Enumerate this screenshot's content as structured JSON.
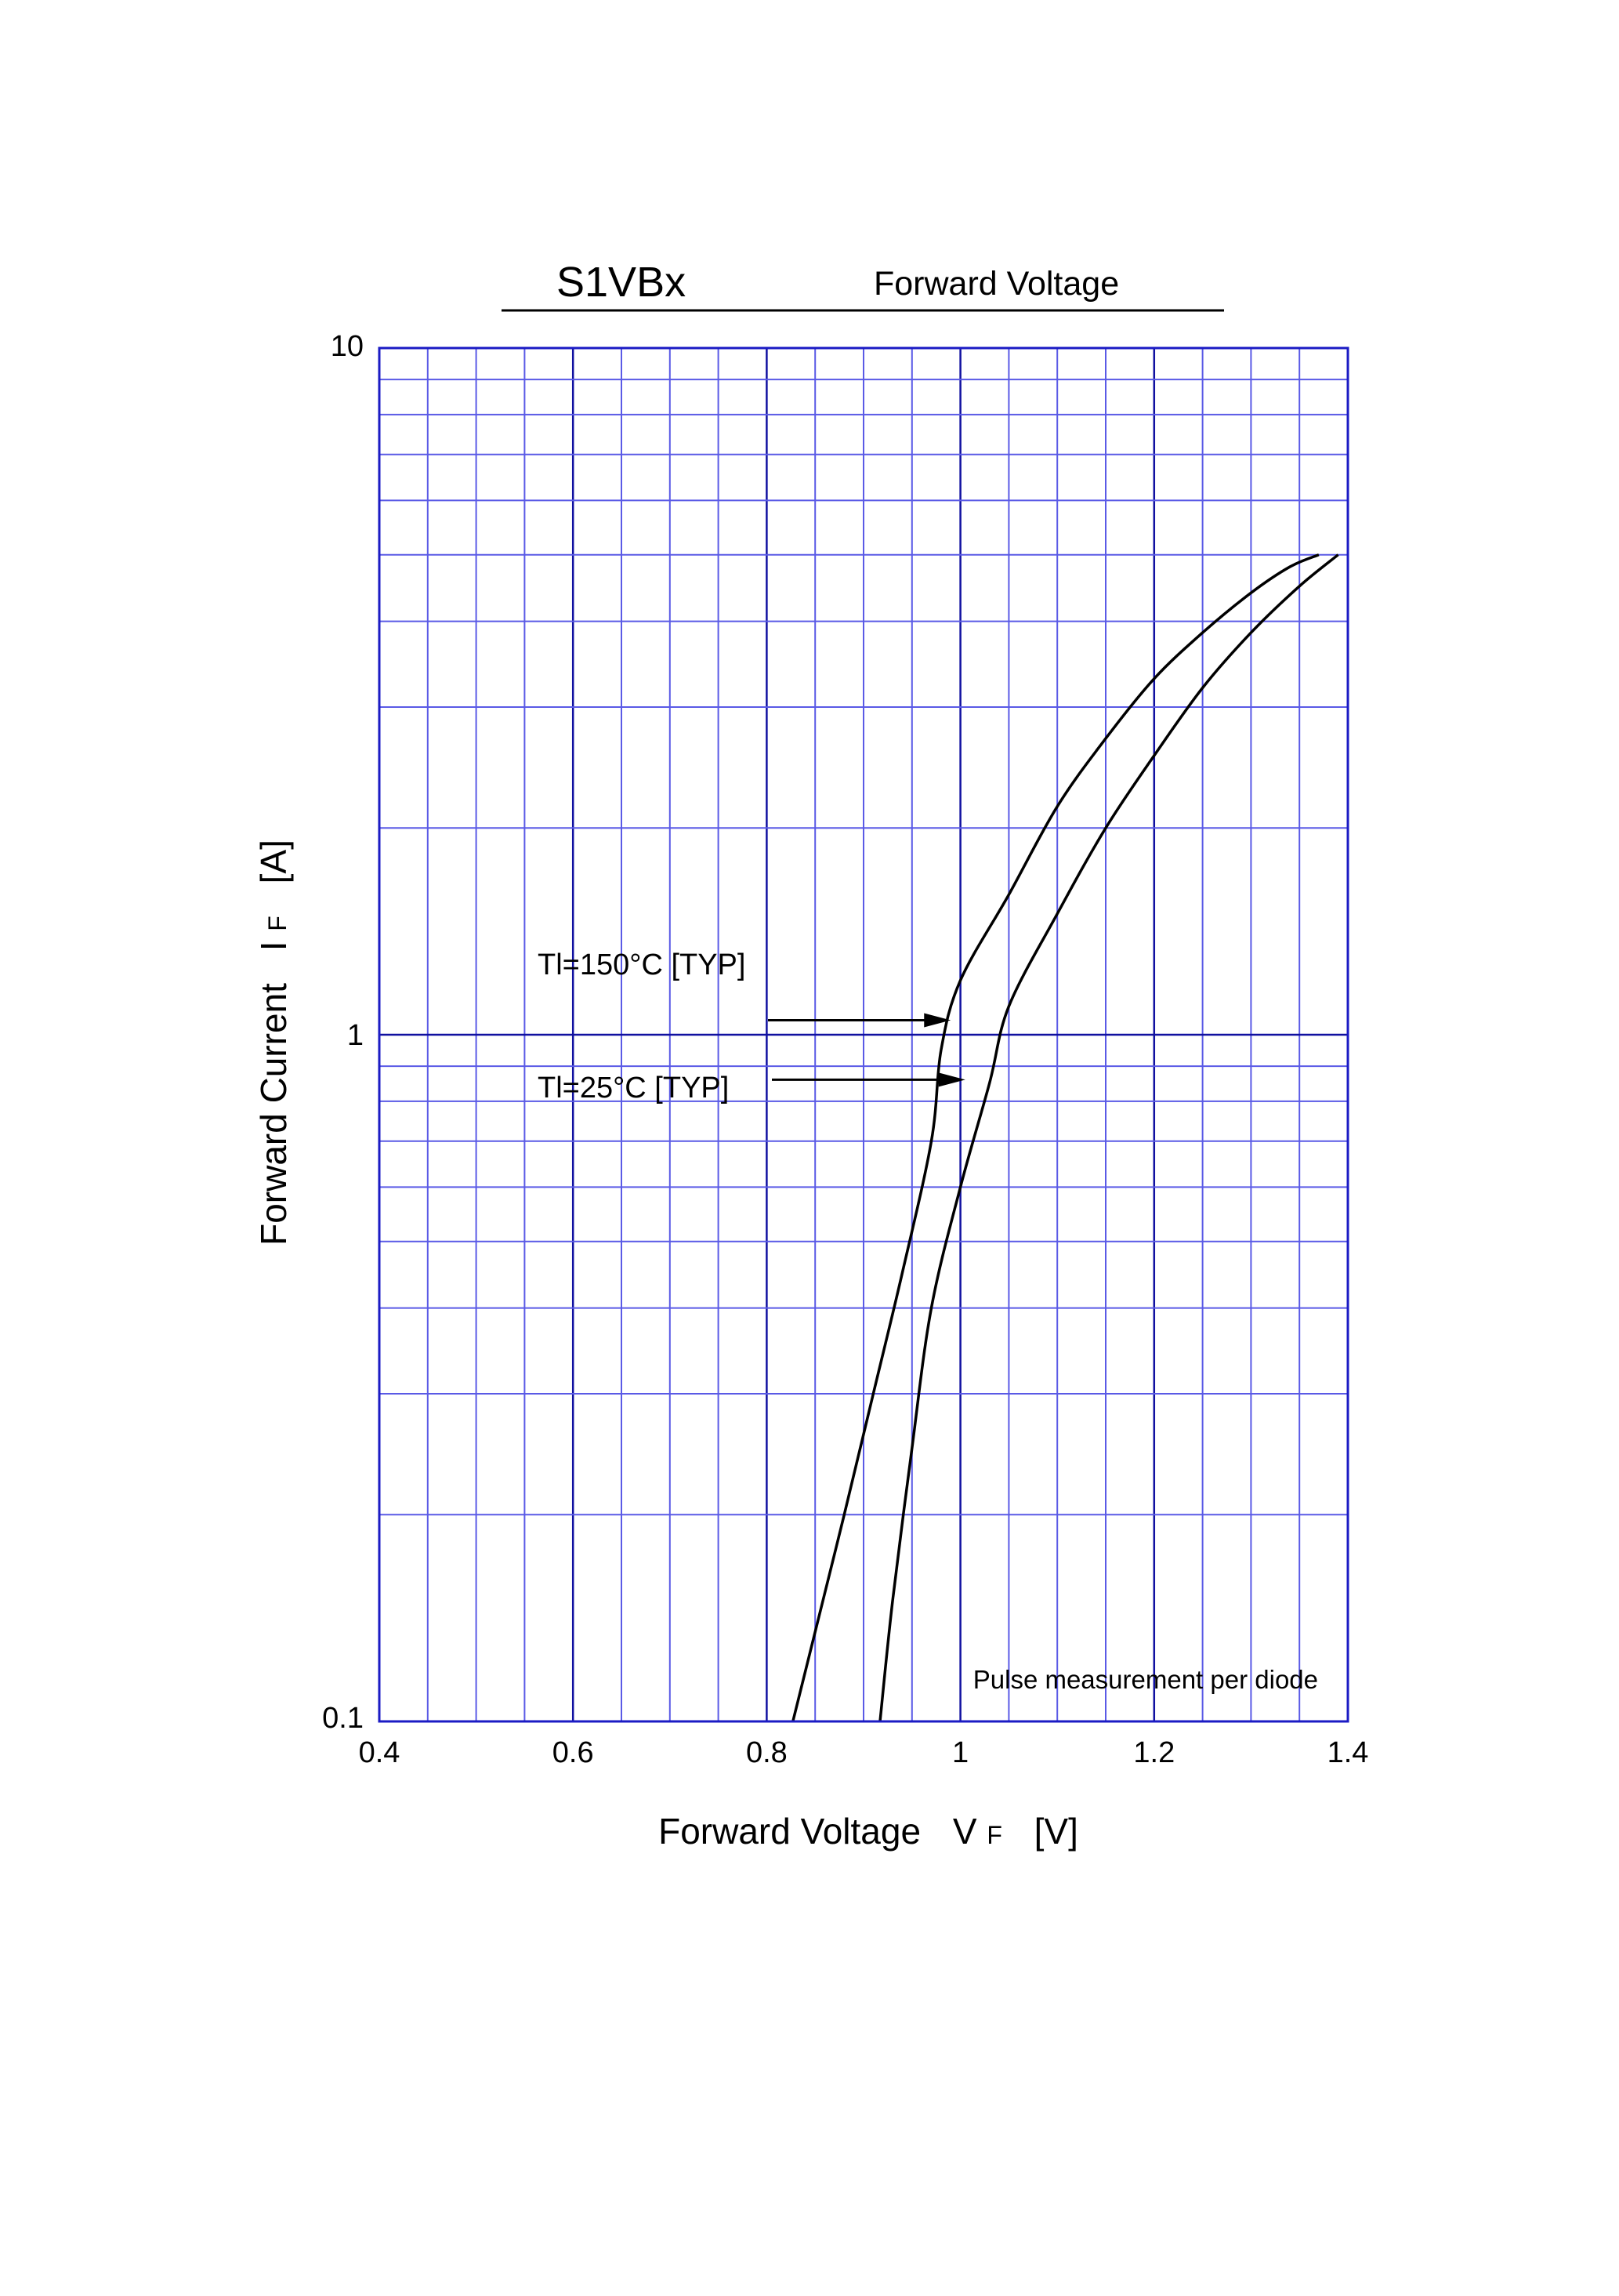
{
  "title": {
    "part": "S1VBx",
    "name": "Forward Voltage"
  },
  "chart_data": {
    "type": "line",
    "x_axis": {
      "label": "Forward Voltage",
      "symbol": "V",
      "subscript": "F",
      "unit": "[V]",
      "range": [
        0.4,
        1.4
      ],
      "ticks": [
        0.4,
        0.6,
        0.8,
        1.0,
        1.2,
        1.4
      ],
      "tick_labels": [
        "0.4",
        "0.6",
        "0.8",
        "1",
        "1.2",
        "1.4"
      ],
      "minor_step": 0.05,
      "scale": "linear"
    },
    "y_axis": {
      "label": "Forward Current",
      "symbol": "I",
      "subscript": "F",
      "unit": "[A]",
      "range": [
        0.1,
        10
      ],
      "ticks": [
        0.1,
        1,
        10
      ],
      "tick_labels": [
        "0.1",
        "1",
        "10"
      ],
      "scale": "log"
    },
    "grid": true,
    "series": [
      {
        "name": "Tl=150°C [TYP]",
        "points": [
          [
            0.827,
            0.1
          ],
          [
            0.85,
            0.135
          ],
          [
            0.88,
            0.2
          ],
          [
            0.91,
            0.3
          ],
          [
            0.94,
            0.45
          ],
          [
            0.97,
            0.7
          ],
          [
            0.98,
            0.95
          ],
          [
            1.0,
            1.2
          ],
          [
            1.05,
            1.6
          ],
          [
            1.1,
            2.15
          ],
          [
            1.15,
            2.7
          ],
          [
            1.2,
            3.3
          ],
          [
            1.25,
            3.85
          ],
          [
            1.3,
            4.4
          ],
          [
            1.34,
            4.8
          ],
          [
            1.37,
            5.0
          ]
        ]
      },
      {
        "name": "Tl=25°C [TYP]",
        "points": [
          [
            0.917,
            0.1
          ],
          [
            0.93,
            0.15
          ],
          [
            0.95,
            0.25
          ],
          [
            0.97,
            0.4
          ],
          [
            1.0,
            0.6
          ],
          [
            1.03,
            0.85
          ],
          [
            1.05,
            1.1
          ],
          [
            1.1,
            1.5
          ],
          [
            1.15,
            2.0
          ],
          [
            1.2,
            2.55
          ],
          [
            1.25,
            3.2
          ],
          [
            1.3,
            3.85
          ],
          [
            1.35,
            4.5
          ],
          [
            1.39,
            5.0
          ]
        ]
      }
    ],
    "annotations": [
      {
        "text": "Tl=150°C [TYP]",
        "target": [
          0.99,
          1.05
        ]
      },
      {
        "text": "Tl=25°C [TYP]",
        "target": [
          1.005,
          0.86
        ]
      },
      {
        "text": "Pulse measurement per diode"
      }
    ]
  }
}
